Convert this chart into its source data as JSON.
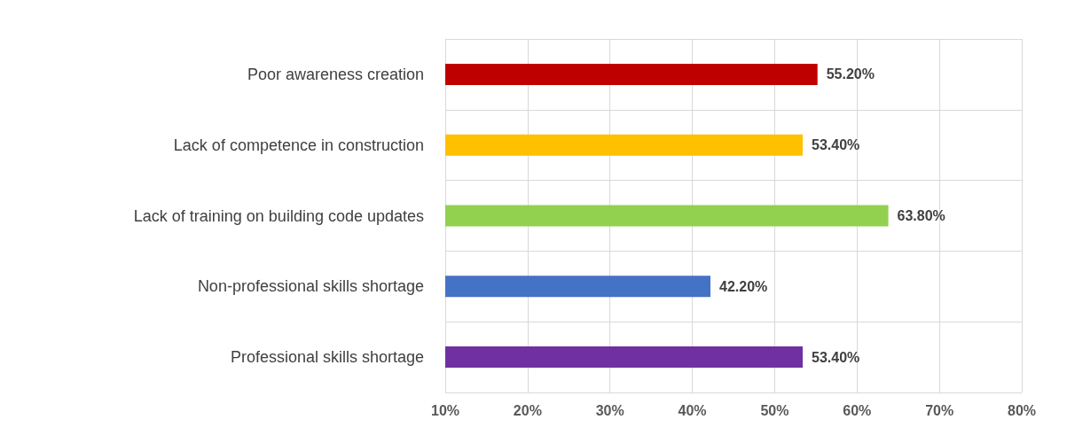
{
  "chart_data": {
    "type": "bar",
    "orientation": "horizontal",
    "categories": [
      "Poor awareness creation",
      "Lack of competence in construction",
      "Lack of training on building code updates",
      "Non-professional skills shortage",
      "Professional skills shortage"
    ],
    "values": [
      55.2,
      53.4,
      63.8,
      42.2,
      53.4
    ],
    "colors": [
      "#c00000",
      "#ffc000",
      "#92d050",
      "#4472c4",
      "#7030a0"
    ],
    "value_labels": [
      "55.20%",
      "53.40%",
      "63.80%",
      "42.20%",
      "53.40%"
    ],
    "xlim": [
      10,
      80
    ],
    "xticks": [
      {
        "value": 10,
        "label": "10%"
      },
      {
        "value": 20,
        "label": "20%"
      },
      {
        "value": 30,
        "label": "30%"
      },
      {
        "value": 40,
        "label": "40%"
      },
      {
        "value": 50,
        "label": "50%"
      },
      {
        "value": 60,
        "label": "60%"
      },
      {
        "value": 70,
        "label": "70%"
      },
      {
        "value": 80,
        "label": "80%"
      }
    ],
    "grid": true
  }
}
